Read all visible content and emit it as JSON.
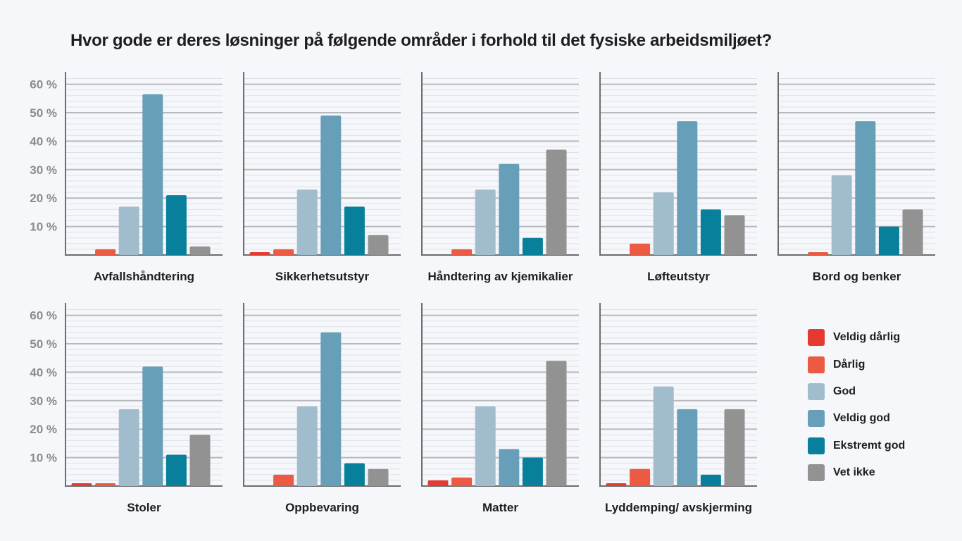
{
  "title": "Hvor gode er deres løsninger på følgende områder i forhold til det fysiske arbeidsmiljøet?",
  "legend": [
    {
      "label": "Veldig dårlig",
      "color": "#e53a2f"
    },
    {
      "label": "Dårlig",
      "color": "#ec5a43"
    },
    {
      "label": "God",
      "color": "#a1bccc"
    },
    {
      "label": "Veldig god",
      "color": "#679fb8"
    },
    {
      "label": "Ekstremt god",
      "color": "#087f9b"
    },
    {
      "label": "Vet ikke",
      "color": "#929292"
    }
  ],
  "chart_data": [
    {
      "type": "bar",
      "title": "Avfallshåndtering",
      "categories": [
        "Veldig dårlig",
        "Dårlig",
        "God",
        "Veldig god",
        "Ekstremt god",
        "Vet ikke"
      ],
      "values": [
        0,
        2,
        17,
        56.5,
        21,
        3
      ],
      "ylim": [
        0,
        65
      ],
      "yticks": [
        "10 %",
        "20 %",
        "30 %",
        "40 %",
        "50 %",
        "60 %"
      ],
      "show_y_axis_labels": true
    },
    {
      "type": "bar",
      "title": "Sikkerhetsutstyr",
      "categories": [
        "Veldig dårlig",
        "Dårlig",
        "God",
        "Veldig god",
        "Ekstremt god",
        "Vet ikke"
      ],
      "values": [
        1,
        2,
        23,
        49,
        17,
        7
      ],
      "ylim": [
        0,
        65
      ],
      "show_y_axis_labels": false
    },
    {
      "type": "bar",
      "title": "Håndtering av kjemikalier",
      "categories": [
        "Veldig dårlig",
        "Dårlig",
        "God",
        "Veldig god",
        "Ekstremt god",
        "Vet ikke"
      ],
      "values": [
        0,
        2,
        23,
        32,
        6,
        37
      ],
      "ylim": [
        0,
        65
      ],
      "show_y_axis_labels": false
    },
    {
      "type": "bar",
      "title": "Løfteutstyr",
      "categories": [
        "Veldig dårlig",
        "Dårlig",
        "God",
        "Veldig god",
        "Ekstremt god",
        "Vet ikke"
      ],
      "values": [
        0,
        4,
        22,
        47,
        16,
        14
      ],
      "ylim": [
        0,
        65
      ],
      "show_y_axis_labels": false
    },
    {
      "type": "bar",
      "title": "Bord og benker",
      "categories": [
        "Veldig dårlig",
        "Dårlig",
        "God",
        "Veldig god",
        "Ekstremt god",
        "Vet ikke"
      ],
      "values": [
        0,
        1,
        28,
        47,
        10,
        16
      ],
      "ylim": [
        0,
        65
      ],
      "show_y_axis_labels": false
    },
    {
      "type": "bar",
      "title": "Stoler",
      "categories": [
        "Veldig dårlig",
        "Dårlig",
        "God",
        "Veldig god",
        "Ekstremt god",
        "Vet ikke"
      ],
      "values": [
        1,
        1,
        27,
        42,
        11,
        18
      ],
      "ylim": [
        0,
        65
      ],
      "yticks": [
        "10 %",
        "20 %",
        "30 %",
        "40 %",
        "50 %",
        "60 %"
      ],
      "show_y_axis_labels": true
    },
    {
      "type": "bar",
      "title": "Oppbevaring",
      "categories": [
        "Veldig dårlig",
        "Dårlig",
        "God",
        "Veldig god",
        "Ekstremt god",
        "Vet ikke"
      ],
      "values": [
        0,
        4,
        28,
        54,
        8,
        6
      ],
      "ylim": [
        0,
        65
      ],
      "show_y_axis_labels": false
    },
    {
      "type": "bar",
      "title": "Matter",
      "categories": [
        "Veldig dårlig",
        "Dårlig",
        "God",
        "Veldig god",
        "Ekstremt god",
        "Vet ikke"
      ],
      "values": [
        2,
        3,
        28,
        13,
        10,
        44
      ],
      "ylim": [
        0,
        65
      ],
      "show_y_axis_labels": false
    },
    {
      "type": "bar",
      "title": "Lyddemping/ avskjerming",
      "categories": [
        "Veldig dårlig",
        "Dårlig",
        "God",
        "Veldig god",
        "Ekstremt god",
        "Vet ikke"
      ],
      "values": [
        1,
        6,
        35,
        27,
        4,
        27
      ],
      "ylim": [
        0,
        65
      ],
      "show_y_axis_labels": false
    }
  ]
}
